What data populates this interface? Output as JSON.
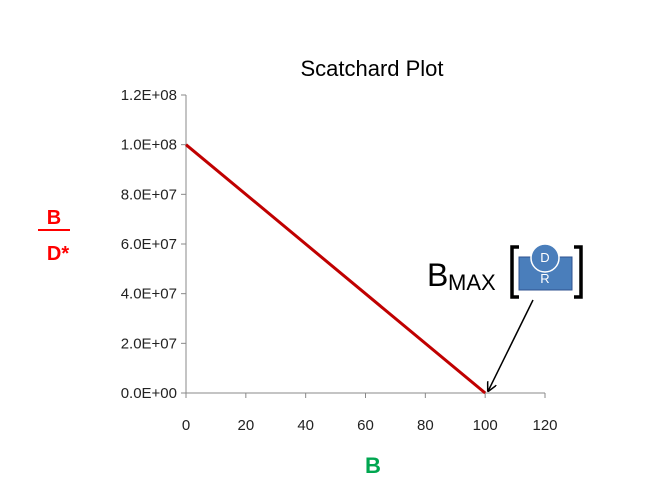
{
  "chart_data": {
    "type": "line",
    "title": "Scatchard Plot",
    "x": [
      0,
      100
    ],
    "series": [
      {
        "values": [
          100000000,
          0
        ],
        "color": "#c00000"
      }
    ],
    "xlim": [
      0,
      120
    ],
    "ylim": [
      0,
      120000000
    ],
    "x_ticks": [
      "0",
      "20",
      "40",
      "60",
      "80",
      "100",
      "120"
    ],
    "y_ticks": [
      "0.0E+00",
      "2.0E+07",
      "4.0E+07",
      "6.0E+07",
      "8.0E+07",
      "1.0E+08",
      "1.2E+08"
    ],
    "ylabel_top": "B",
    "ylabel_bottom": "D*",
    "ylabel_color": "#ff0000",
    "xlabel": "B",
    "xlabel_color": "#00a650",
    "grid": false,
    "annotation": {
      "main": "B",
      "subscript": "MAX",
      "receptor_top": "D",
      "receptor_bottom": "R",
      "receptor_color": "#4a7ebb",
      "arrow_target_x": 100,
      "arrow_target_y": 0
    }
  }
}
